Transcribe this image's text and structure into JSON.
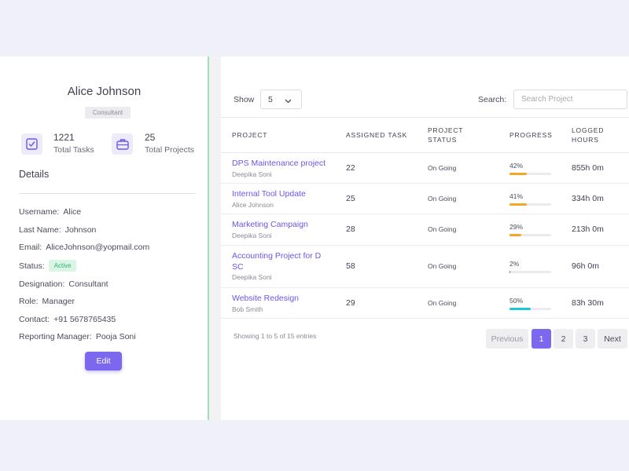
{
  "profile": {
    "name": "Alice Johnson",
    "role_badge": "Consultant",
    "stats": [
      {
        "value": "1221",
        "label": "Total Tasks",
        "icon": "checkbox-icon"
      },
      {
        "value": "25",
        "label": "Total Projects",
        "icon": "briefcase-icon"
      }
    ],
    "details_title": "Details",
    "details": {
      "username": {
        "label": "Username:",
        "value": "Alice"
      },
      "last_name": {
        "label": "Last Name:",
        "value": "Johnson"
      },
      "email": {
        "label": "Email:",
        "value": "AliceJohnson@yopmail.com"
      },
      "status": {
        "label": "Status:",
        "value": "Active"
      },
      "designation": {
        "label": "Designation:",
        "value": "Consultant"
      },
      "role": {
        "label": "Role:",
        "value": "Manager"
      },
      "contact": {
        "label": "Contact:",
        "value": "+91 5678765435"
      },
      "reporting_manager": {
        "label": "Reporting Manager:",
        "value": "Pooja Soni"
      }
    },
    "edit_label": "Edit"
  },
  "table": {
    "show_label": "Show",
    "show_value": "5",
    "search_label": "Search:",
    "search_placeholder": "Search Project",
    "headers": {
      "project": "PROJECT",
      "assigned_task": "ASSIGNED TASK",
      "project_status_1": "PROJECT",
      "project_status_2": "STATUS",
      "progress": "PROGRESS",
      "logged_hours_1": "LOGGED",
      "logged_hours_2": "HOURS"
    },
    "rows": [
      {
        "name": "DPS Maintenance project",
        "owner": "Deepika Soni",
        "tasks": "22",
        "status": "On Going",
        "progress": 42,
        "progress_label": "42%",
        "hours": "855h 0m",
        "color": "#f5a623"
      },
      {
        "name": "Internal Tool Update",
        "owner": "Alice Johnson",
        "tasks": "25",
        "status": "On Going",
        "progress": 41,
        "progress_label": "41%",
        "hours": "334h 0m",
        "color": "#f5a623"
      },
      {
        "name": "Marketing Campaign",
        "owner": "Deepika Soni",
        "tasks": "28",
        "status": "On Going",
        "progress": 29,
        "progress_label": "29%",
        "hours": "213h 0m",
        "color": "#f5a623"
      },
      {
        "name_line1": "Accounting Project for D",
        "name_line2": "SC",
        "owner": "Deepika Soni",
        "tasks": "58",
        "status": "On Going",
        "progress": 2,
        "progress_label": "2%",
        "hours": "96h 0m",
        "color": "#e74c5b"
      },
      {
        "name": "Website Redesign",
        "owner": "Bob Smith",
        "tasks": "29",
        "status": "On Going",
        "progress": 50,
        "progress_label": "50%",
        "hours": "83h 30m",
        "color": "#1cc8d8"
      }
    ],
    "entries_text": "Showing 1 to 5 of 15 entries",
    "pagination": {
      "previous": "Previous",
      "pages": [
        "1",
        "2",
        "3"
      ],
      "active_page": "1",
      "next": "Next"
    }
  }
}
